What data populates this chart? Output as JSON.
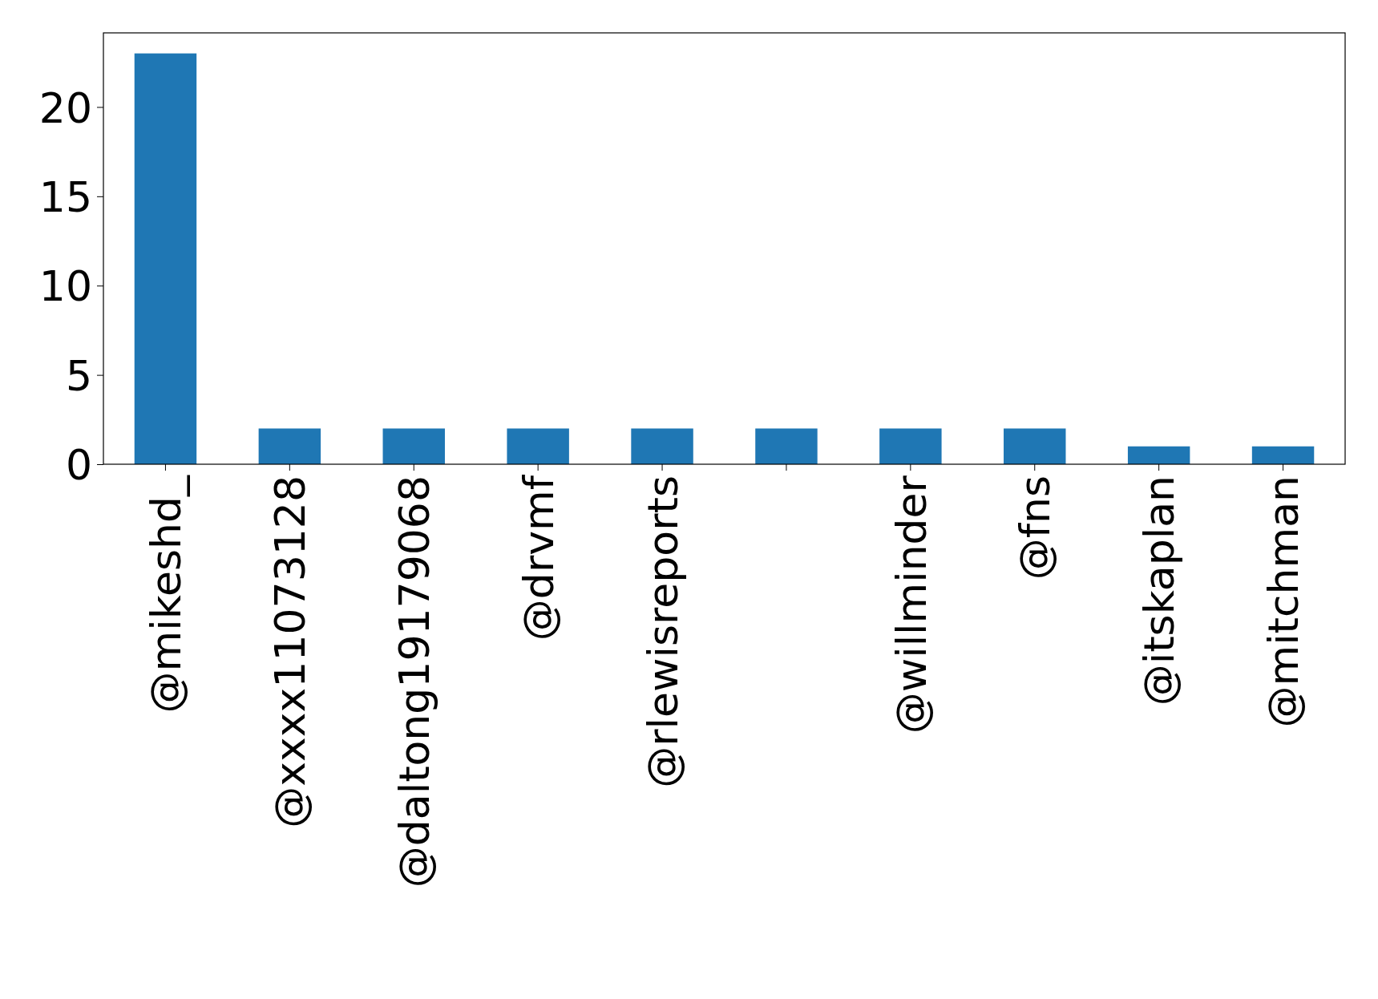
{
  "chart_data": {
    "type": "bar",
    "categories": [
      "@mikeshd_",
      "@xxxx11073128",
      "@daltong19179068",
      "@drvmf",
      "@rlewisreports",
      null,
      "@willminder",
      "@fns",
      "@itskaplan",
      "@mitchman"
    ],
    "values": [
      23,
      2,
      2,
      2,
      2,
      2,
      2,
      2,
      1,
      1
    ],
    "color": "#1f77b4",
    "ylim": [
      0,
      24.15
    ],
    "yticks": [
      0,
      5,
      10,
      15,
      20
    ],
    "grid": false
  }
}
